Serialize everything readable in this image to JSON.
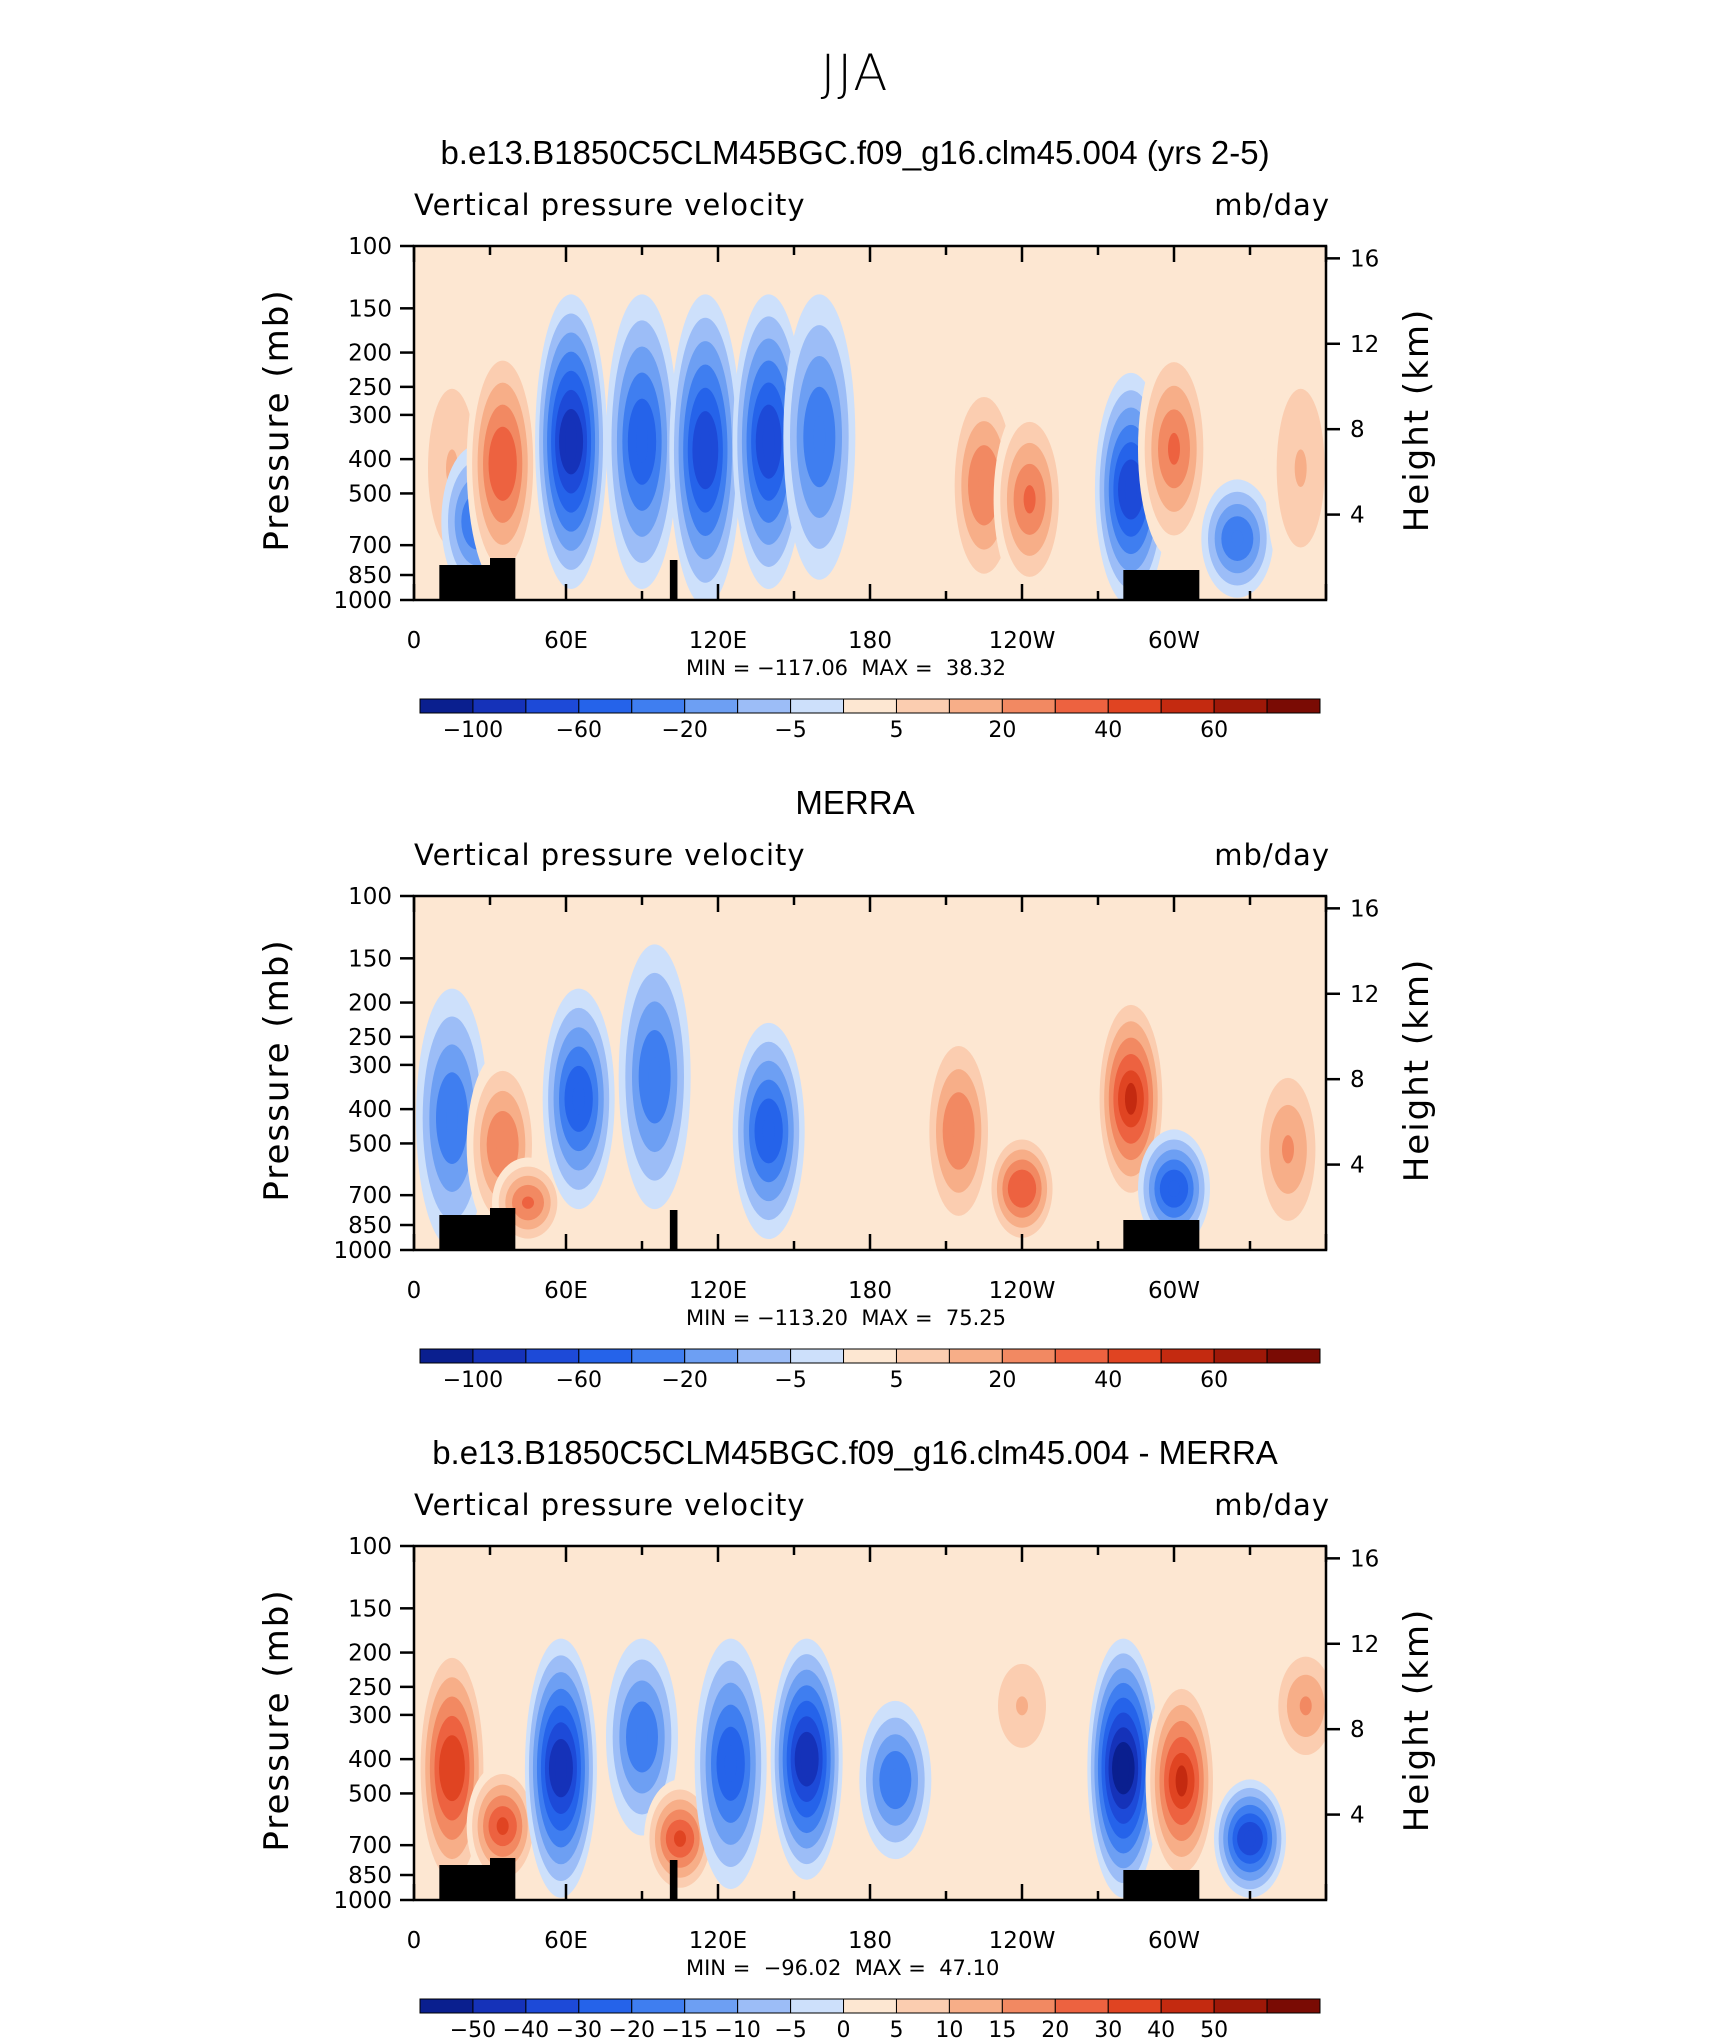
{
  "figure": {
    "title": "JJA"
  },
  "chart_data": [
    {
      "type": "heatmap",
      "title": "b.e13.B1850C5CLM45BGC.f09_g16.clm45.004 (yrs 2-5)",
      "variable_label": "Vertical pressure velocity",
      "units_label": "mb/day",
      "ylabel": "Pressure (mb)",
      "ylabel_right": "Height (km)",
      "x_ticks": [
        "0",
        "60E",
        "120E",
        "180",
        "120W",
        "60W"
      ],
      "y_ticks": [
        "100",
        "150",
        "200",
        "250",
        "300",
        "400",
        "500",
        "700",
        "850",
        "1000"
      ],
      "y_right_ticks": [
        "16",
        "12",
        "8",
        "4"
      ],
      "minmax_text": "MIN = −117.06  MAX =  38.32",
      "min": -117.06,
      "max": 38.32,
      "colorbar_labels": [
        "−100",
        "−60",
        "−20",
        "−5",
        "5",
        "20",
        "40",
        "60"
      ],
      "colorbar_levels": [
        -120,
        -100,
        -80,
        -60,
        -40,
        -20,
        -10,
        -5,
        0,
        5,
        10,
        20,
        30,
        40,
        50,
        60,
        70
      ],
      "colorbar_colors": [
        "#0a1f8f",
        "#1532b9",
        "#1d4ad8",
        "#2563ea",
        "#3f7ef0",
        "#6d9ff3",
        "#9cbdf7",
        "#cde0fb",
        "#fde7d2",
        "#fbcdb0",
        "#f7ae88",
        "#f28962",
        "#ed6240",
        "#e04422",
        "#c42a10",
        "#9e1808",
        "#7a0b04"
      ],
      "features": [
        {
          "lon": 15,
          "p_top": 200,
          "p_bot": 900,
          "value": 10
        },
        {
          "lon": 25,
          "p_top": 400,
          "p_bot": 900,
          "value": -30
        },
        {
          "lon": 35,
          "p_top": 200,
          "p_bot": 850,
          "value": 35
        },
        {
          "lon": 62,
          "p_top": 150,
          "p_bot": 850,
          "value": -100
        },
        {
          "lon": 90,
          "p_top": 150,
          "p_bot": 850,
          "value": -60
        },
        {
          "lon": 115,
          "p_top": 150,
          "p_bot": 950,
          "value": -70
        },
        {
          "lon": 140,
          "p_top": 150,
          "p_bot": 850,
          "value": -80
        },
        {
          "lon": 160,
          "p_top": 150,
          "p_bot": 800,
          "value": -40
        },
        {
          "lon": 225,
          "p_top": 250,
          "p_bot": 900,
          "value": 25
        },
        {
          "lon": 243,
          "p_top": 300,
          "p_bot": 900,
          "value": 30
        },
        {
          "lon": 283,
          "p_top": 250,
          "p_bot": 950,
          "value": -80
        },
        {
          "lon": 300,
          "p_top": 200,
          "p_bot": 700,
          "value": 30
        },
        {
          "lon": 325,
          "p_top": 500,
          "p_bot": 900,
          "value": -40
        },
        {
          "lon": 350,
          "p_top": 200,
          "p_bot": 900,
          "value": 10
        }
      ]
    },
    {
      "type": "heatmap",
      "title": "MERRA",
      "variable_label": "Vertical pressure velocity",
      "units_label": "mb/day",
      "ylabel": "Pressure (mb)",
      "ylabel_right": "Height (km)",
      "x_ticks": [
        "0",
        "60E",
        "120E",
        "180",
        "120W",
        "60W"
      ],
      "y_ticks": [
        "100",
        "150",
        "200",
        "250",
        "300",
        "400",
        "500",
        "700",
        "850",
        "1000"
      ],
      "y_right_ticks": [
        "16",
        "12",
        "8",
        "4"
      ],
      "minmax_text": "MIN = −113.20  MAX =  75.25",
      "min": -113.2,
      "max": 75.25,
      "colorbar_labels": [
        "−100",
        "−60",
        "−20",
        "−5",
        "5",
        "20",
        "40",
        "60"
      ],
      "colorbar_levels": [
        -120,
        -100,
        -80,
        -60,
        -40,
        -20,
        -10,
        -5,
        0,
        5,
        10,
        20,
        30,
        40,
        50,
        60,
        70
      ],
      "colorbar_colors": [
        "#0a1f8f",
        "#1532b9",
        "#1d4ad8",
        "#2563ea",
        "#3f7ef0",
        "#6d9ff3",
        "#9cbdf7",
        "#cde0fb",
        "#fde7d2",
        "#fbcdb0",
        "#f7ae88",
        "#f28962",
        "#ed6240",
        "#e04422",
        "#c42a10",
        "#9e1808",
        "#7a0b04"
      ],
      "features": [
        {
          "lon": 15,
          "p_top": 200,
          "p_bot": 900,
          "value": -40
        },
        {
          "lon": 35,
          "p_top": 300,
          "p_bot": 850,
          "value": 25
        },
        {
          "lon": 45,
          "p_top": 600,
          "p_bot": 900,
          "value": 30
        },
        {
          "lon": 65,
          "p_top": 200,
          "p_bot": 700,
          "value": -60
        },
        {
          "lon": 95,
          "p_top": 150,
          "p_bot": 700,
          "value": -30
        },
        {
          "lon": 140,
          "p_top": 250,
          "p_bot": 850,
          "value": -60
        },
        {
          "lon": 215,
          "p_top": 250,
          "p_bot": 850,
          "value": 25
        },
        {
          "lon": 240,
          "p_top": 500,
          "p_bot": 900,
          "value": 35
        },
        {
          "lon": 283,
          "p_top": 200,
          "p_bot": 700,
          "value": 50
        },
        {
          "lon": 300,
          "p_top": 500,
          "p_bot": 900,
          "value": -50
        },
        {
          "lon": 345,
          "p_top": 300,
          "p_bot": 900,
          "value": 20
        }
      ]
    },
    {
      "type": "heatmap",
      "title": "b.e13.B1850C5CLM45BGC.f09_g16.clm45.004 - MERRA",
      "variable_label": "Vertical pressure velocity",
      "units_label": "mb/day",
      "ylabel": "Pressure (mb)",
      "ylabel_right": "Height (km)",
      "x_ticks": [
        "0",
        "60E",
        "120E",
        "180",
        "120W",
        "60W"
      ],
      "y_ticks": [
        "100",
        "150",
        "200",
        "250",
        "300",
        "400",
        "500",
        "700",
        "850",
        "1000"
      ],
      "y_right_ticks": [
        "16",
        "12",
        "8",
        "4"
      ],
      "minmax_text": "MIN =  −96.02  MAX =  47.10",
      "min": -96.02,
      "max": 47.1,
      "colorbar_labels": [
        "−50",
        "−40",
        "−30",
        "−20",
        "−15",
        "−10",
        "−5",
        "0",
        "5",
        "10",
        "15",
        "20",
        "30",
        "40",
        "50"
      ],
      "colorbar_levels": [
        -60,
        -50,
        -40,
        -30,
        -20,
        -15,
        -10,
        -5,
        0,
        5,
        10,
        15,
        20,
        30,
        40,
        50,
        60
      ],
      "colorbar_colors": [
        "#0a1f8f",
        "#1532b9",
        "#1d4ad8",
        "#2563ea",
        "#3f7ef0",
        "#6d9ff3",
        "#9cbdf7",
        "#cde0fb",
        "#fde7d2",
        "#fbcdb0",
        "#f7ae88",
        "#f28962",
        "#ed6240",
        "#e04422",
        "#c42a10",
        "#9e1808",
        "#7a0b04"
      ],
      "features": [
        {
          "lon": 15,
          "p_top": 200,
          "p_bot": 900,
          "value": 35
        },
        {
          "lon": 35,
          "p_top": 450,
          "p_bot": 850,
          "value": 30
        },
        {
          "lon": 58,
          "p_top": 200,
          "p_bot": 900,
          "value": -50
        },
        {
          "lon": 90,
          "p_top": 200,
          "p_bot": 600,
          "value": -20
        },
        {
          "lon": 105,
          "p_top": 500,
          "p_bot": 900,
          "value": 30
        },
        {
          "lon": 125,
          "p_top": 200,
          "p_bot": 850,
          "value": -30
        },
        {
          "lon": 155,
          "p_top": 200,
          "p_bot": 800,
          "value": -45
        },
        {
          "lon": 190,
          "p_top": 300,
          "p_bot": 700,
          "value": -20
        },
        {
          "lon": 240,
          "p_top": 200,
          "p_bot": 400,
          "value": 10
        },
        {
          "lon": 280,
          "p_top": 200,
          "p_bot": 900,
          "value": -55
        },
        {
          "lon": 303,
          "p_top": 250,
          "p_bot": 850,
          "value": 40
        },
        {
          "lon": 330,
          "p_top": 500,
          "p_bot": 900,
          "value": -35
        },
        {
          "lon": 352,
          "p_top": 200,
          "p_bot": 400,
          "value": 15
        }
      ]
    }
  ]
}
